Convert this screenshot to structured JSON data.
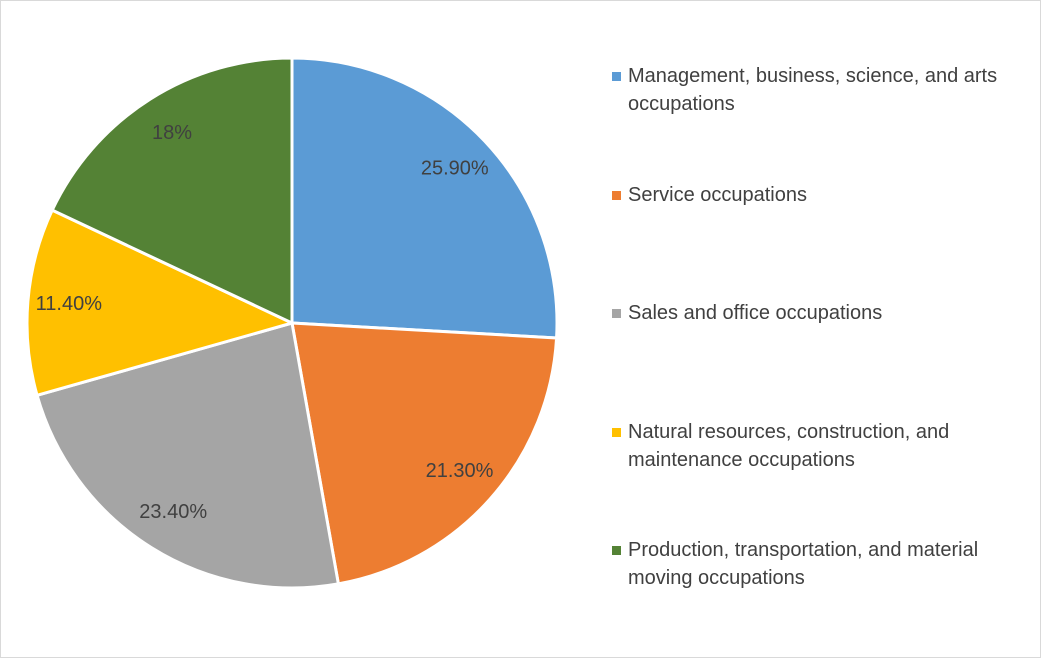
{
  "chart_data": {
    "type": "pie",
    "categories": [
      "Management, business, science, and arts occupations",
      "Service occupations",
      "Sales and office occupations",
      "Natural resources, construction, and maintenance occupations",
      "Production, transportation, and material moving occupations"
    ],
    "values": [
      25.9,
      21.3,
      23.4,
      11.4,
      18
    ],
    "value_labels": [
      "25.90%",
      "21.30%",
      "23.40%",
      "11.40%",
      "18%"
    ],
    "colors": [
      "#5b9bd5",
      "#ed7d31",
      "#a5a5a5",
      "#ffc000",
      "#548235"
    ],
    "legend": "right"
  }
}
